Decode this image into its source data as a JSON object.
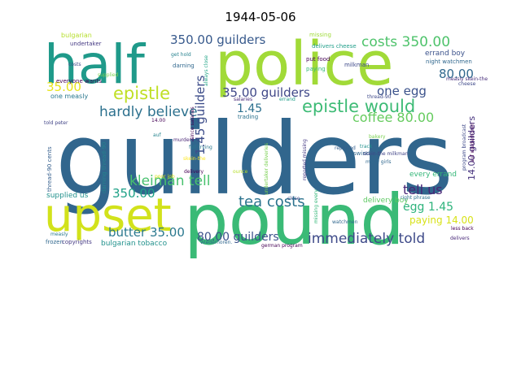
{
  "chart_data": {
    "type": "wordcloud",
    "title": "1944-05-06",
    "words": [
      {
        "text": "guilders",
        "color": "#31668d"
      },
      {
        "text": "pound",
        "color": "#3aba76"
      },
      {
        "text": "police",
        "color": "#a1da38"
      },
      {
        "text": "half",
        "color": "#1f9a8a"
      },
      {
        "text": "upset",
        "color": "#d2e21b"
      },
      {
        "text": "epistle would",
        "color": "#3dbb75"
      },
      {
        "text": "epistle",
        "color": "#bfdf25"
      },
      {
        "text": "immediately told",
        "color": "#3e4a89"
      },
      {
        "text": "kleiman tell",
        "color": "#48c16e"
      },
      {
        "text": "tea costs",
        "color": "#2c738e"
      },
      {
        "text": "costs 350.00",
        "color": "#4ec36b"
      },
      {
        "text": "hardly believe",
        "color": "#2d718e"
      },
      {
        "text": "coffee 80.00",
        "color": "#65cb5e"
      },
      {
        "text": "1.45 guilders",
        "color": "#3d4d8a"
      },
      {
        "text": "350.00 guilders",
        "color": "#37598c"
      },
      {
        "text": "35.00 guilders",
        "color": "#3f4788"
      },
      {
        "text": "80.00 guilders",
        "color": "#3b518b"
      },
      {
        "text": "butter 35.00",
        "color": "#2a788e"
      },
      {
        "text": "tell us",
        "color": "#482576"
      },
      {
        "text": "one egg",
        "color": "#3b528b"
      },
      {
        "text": "egg 1.45",
        "color": "#2eb37c"
      },
      {
        "text": "80.00",
        "color": "#31688e"
      },
      {
        "text": "350.00",
        "color": "#1fa187"
      },
      {
        "text": "1.45",
        "color": "#2d708e"
      },
      {
        "text": "35.00",
        "color": "#e7e419"
      },
      {
        "text": "14.00 guilders",
        "color": "#46327e"
      },
      {
        "text": "paying 14.00",
        "color": "#d8e219"
      },
      {
        "text": "errand boy",
        "color": "#3b528b"
      },
      {
        "text": "night watchmen",
        "color": "#31688e"
      },
      {
        "text": "every errand",
        "color": "#35b779"
      },
      {
        "text": "delivery boy",
        "color": "#5ec962"
      },
      {
        "text": "one measly",
        "color": "#2a788e"
      },
      {
        "text": "bulgarian tobacco",
        "color": "#21918c"
      },
      {
        "text": "supplied us",
        "color": "#21918c"
      },
      {
        "text": "bulgarian",
        "color": "#b5de2b"
      },
      {
        "text": "undertaker",
        "color": "#443983"
      },
      {
        "text": "everyone wants",
        "color": "#440154"
      },
      {
        "text": "supplied",
        "color": "#7ad151"
      },
      {
        "text": "costs",
        "color": "#3e4989"
      },
      {
        "text": "darning",
        "color": "#31688e"
      },
      {
        "text": "get hold",
        "color": "#26828e"
      },
      {
        "text": "always close",
        "color": "#20a486"
      },
      {
        "text": "missing",
        "color": "#9fda3a"
      },
      {
        "text": "delivers cheese",
        "color": "#1f9e89"
      },
      {
        "text": "put food",
        "color": "#440154"
      },
      {
        "text": "paying",
        "color": "#35b779"
      },
      {
        "text": "milkman",
        "color": "#3e4989"
      },
      {
        "text": "measly skein-the",
        "color": "#472d7b"
      },
      {
        "text": "salaries",
        "color": "#482878"
      },
      {
        "text": "errand",
        "color": "#1f9e89"
      },
      {
        "text": "thread-90",
        "color": "#3e4989"
      },
      {
        "text": "told peter",
        "color": "#414487"
      },
      {
        "text": "14.00",
        "color": "#440154"
      },
      {
        "text": "thread-90 cents",
        "color": "#355f8d"
      },
      {
        "text": "darning thread-90",
        "color": "#26828e"
      },
      {
        "text": "murders",
        "color": "#482475"
      },
      {
        "text": "auf",
        "color": "#25848e"
      },
      {
        "text": "since salaries",
        "color": "#440154"
      },
      {
        "text": "full trying",
        "color": "#2a788e"
      },
      {
        "text": "trading",
        "color": "#2c728e"
      },
      {
        "text": "undertaker deliveries",
        "color": "#7ad151"
      },
      {
        "text": "skein-the",
        "color": "#fde725"
      },
      {
        "text": "delivery",
        "color": "#440154"
      },
      {
        "text": "ounce",
        "color": "#b5de2b"
      },
      {
        "text": "reported missing",
        "color": "#443983"
      },
      {
        "text": "swindling",
        "color": "#31688e"
      },
      {
        "text": "track",
        "color": "#21918c"
      },
      {
        "text": "many girls",
        "color": "#31688e"
      },
      {
        "text": "skein-the milkman",
        "color": "#414487"
      },
      {
        "text": "bakery",
        "color": "#7ad151"
      },
      {
        "text": "reported",
        "color": "#355f8d"
      },
      {
        "text": "program broadcast",
        "color": "#3e4989"
      },
      {
        "text": "auf wiederhoren",
        "color": "#440154"
      },
      {
        "text": "right phrase",
        "color": "#2c728e"
      },
      {
        "text": "watchmen",
        "color": "#31688e"
      },
      {
        "text": "missing every",
        "color": "#35b779"
      },
      {
        "text": "close",
        "color": "#3e4989"
      },
      {
        "text": "poor job",
        "color": "#d8e219"
      },
      {
        "text": "measly",
        "color": "#2a788e"
      },
      {
        "text": "frozen",
        "color": "#31688e"
      },
      {
        "text": "copyrights",
        "color": "#443983"
      },
      {
        "text": "wiederhoren.",
        "color": "#31688e"
      },
      {
        "text": "german program",
        "color": "#440154"
      },
      {
        "text": "less back",
        "color": "#440154"
      },
      {
        "text": "delivers",
        "color": "#482878"
      },
      {
        "text": "cheese",
        "color": "#3e4989"
      }
    ]
  }
}
